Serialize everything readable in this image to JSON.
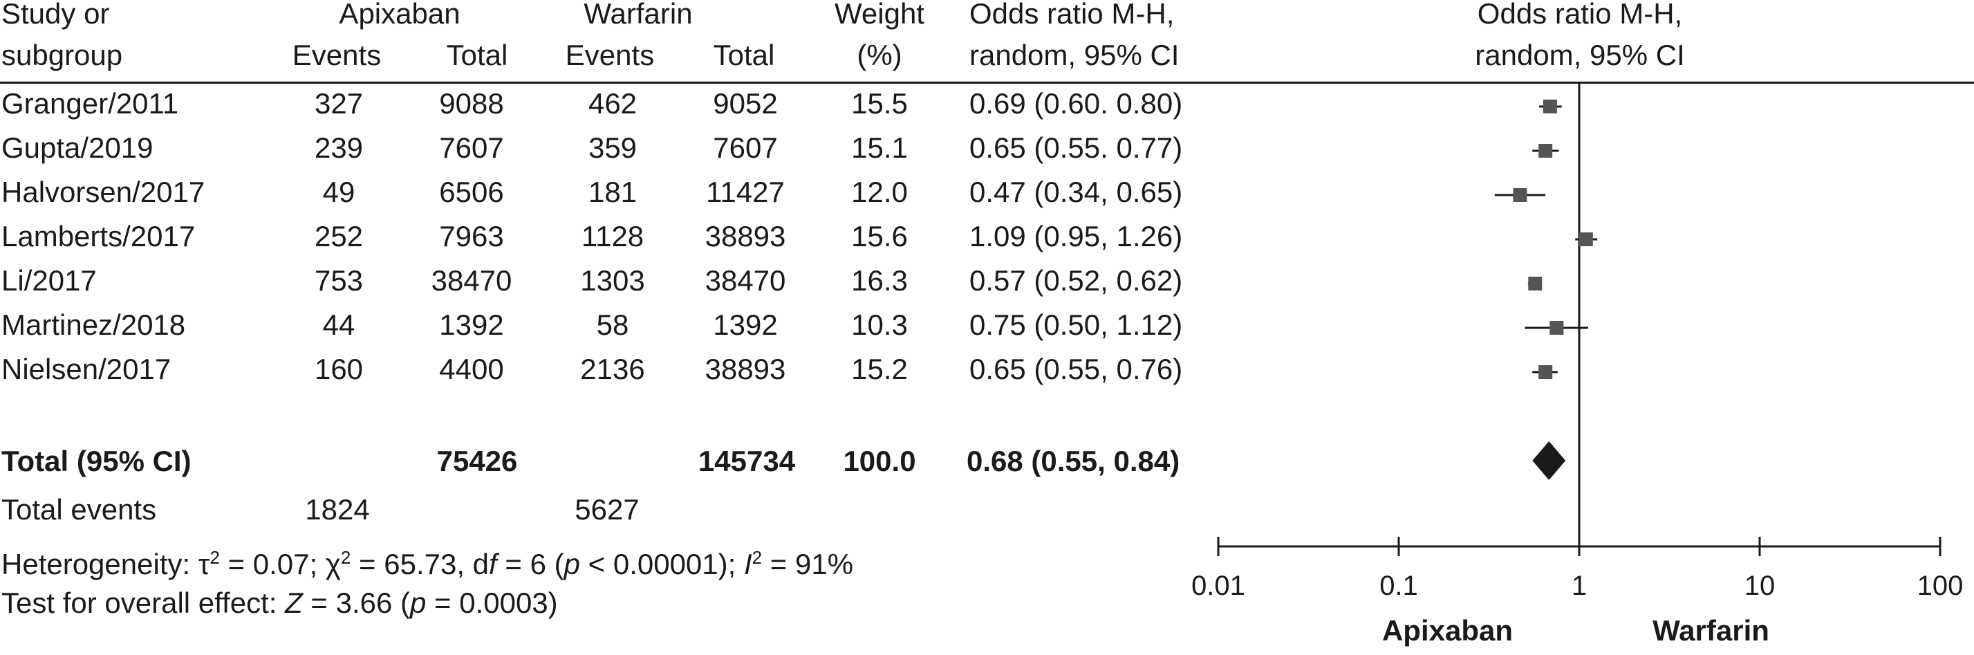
{
  "headers": {
    "study": [
      "Study or",
      "subgroup"
    ],
    "apixaban": "Apixaban",
    "warfarin": "Warfarin",
    "events": "Events",
    "total": "Total",
    "weight": [
      "Weight",
      "(%)"
    ],
    "or": [
      "Odds ratio M-H,",
      "random, 95% CI"
    ],
    "plot_or": [
      "Odds ratio M-H,",
      "random, 95% CI"
    ]
  },
  "studies": [
    {
      "name": "Granger/2011",
      "apx_events": "327",
      "apx_total": "9088",
      "war_events": "462",
      "war_total": "9052",
      "weight": "15.5",
      "or_text": "0.69 (0.60. 0.80)"
    },
    {
      "name": "Gupta/2019",
      "apx_events": "239",
      "apx_total": "7607",
      "war_events": "359",
      "war_total": "7607",
      "weight": "15.1",
      "or_text": "0.65 (0.55. 0.77)"
    },
    {
      "name": "Halvorsen/2017",
      "apx_events": "49",
      "apx_total": "6506",
      "war_events": "181",
      "war_total": "11427",
      "weight": "12.0",
      "or_text": "0.47 (0.34, 0.65)"
    },
    {
      "name": "Lamberts/2017",
      "apx_events": "252",
      "apx_total": "7963",
      "war_events": "1128",
      "war_total": "38893",
      "weight": "15.6",
      "or_text": "1.09 (0.95, 1.26)"
    },
    {
      "name": "Li/2017",
      "apx_events": "753",
      "apx_total": "38470",
      "war_events": "1303",
      "war_total": "38470",
      "weight": "16.3",
      "or_text": "0.57 (0.52, 0.62)"
    },
    {
      "name": "Martinez/2018",
      "apx_events": "44",
      "apx_total": "1392",
      "war_events": "58",
      "war_total": "1392",
      "weight": "10.3",
      "or_text": "0.75 (0.50, 1.12)"
    },
    {
      "name": "Nielsen/2017",
      "apx_events": "160",
      "apx_total": "4400",
      "war_events": "2136",
      "war_total": "38893",
      "weight": "15.2",
      "or_text": "0.65 (0.55, 0.76)"
    }
  ],
  "total": {
    "label": "Total (95% CI)",
    "apx_total": "75426",
    "war_total": "145734",
    "weight": "100.0",
    "or_text": "0.68 (0.55, 0.84)"
  },
  "events": {
    "label": "Total events",
    "apx": "1824",
    "war": "5627"
  },
  "heterogeneity": {
    "prefix": "Heterogeneity: τ",
    "sup1": "2",
    "part2": " = 0.07; χ",
    "sup2": "2",
    "part3": " = 65.73, d",
    "df": "f",
    "part4": " = 6 (",
    "p": "p",
    "part5": " < 0.00001); ",
    "I": "I",
    "sup3": "2",
    "part6": " = 91%"
  },
  "overall": {
    "prefix": "Test for overall effect: ",
    "Z": "Z",
    "part2": " = 3.66 (",
    "p": "p",
    "part3": " = 0.0003)"
  },
  "chart_data": {
    "type": "scatter",
    "x_scale": "log",
    "xlim": [
      0.01,
      100
    ],
    "ticks": [
      0.01,
      0.1,
      1,
      10,
      100
    ],
    "tick_labels": [
      "0.01",
      "0.1",
      "1",
      "10",
      "100"
    ],
    "left_label": "Apixaban",
    "right_label": "Warfarin",
    "points": [
      {
        "or": 0.69,
        "lo": 0.6,
        "hi": 0.8
      },
      {
        "or": 0.65,
        "lo": 0.55,
        "hi": 0.77
      },
      {
        "or": 0.47,
        "lo": 0.34,
        "hi": 0.65
      },
      {
        "or": 1.09,
        "lo": 0.95,
        "hi": 1.26
      },
      {
        "or": 0.57,
        "lo": 0.52,
        "hi": 0.62
      },
      {
        "or": 0.75,
        "lo": 0.5,
        "hi": 1.12
      },
      {
        "or": 0.65,
        "lo": 0.55,
        "hi": 0.76
      }
    ],
    "pooled": {
      "or": 0.68,
      "lo": 0.55,
      "hi": 0.84
    },
    "colors": {
      "marker": "#555555",
      "line": "#1a1a1a",
      "diamond": "#1a1a1a"
    }
  }
}
